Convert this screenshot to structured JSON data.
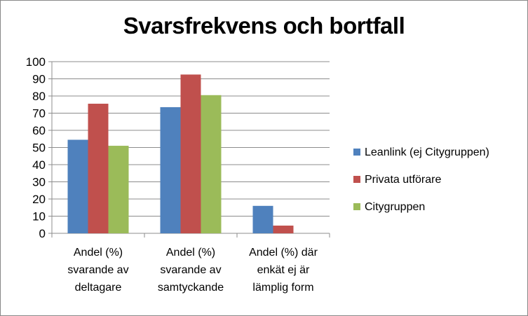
{
  "chart_data": {
    "type": "bar",
    "title": "Svarsfrekvens och bortfall",
    "xlabel": "",
    "ylabel": "",
    "ylim": [
      0,
      100
    ],
    "yticks": [
      "0",
      "10",
      "20",
      "30",
      "40",
      "50",
      "60",
      "70",
      "80",
      "90",
      "100"
    ],
    "categories": [
      [
        "Andel (%)",
        "svarande av",
        "deltagare"
      ],
      [
        "Andel (%)",
        "svarande av",
        "samtyckande"
      ],
      [
        "Andel (%) där",
        "enkät ej är",
        "lämplig form"
      ]
    ],
    "series": [
      {
        "name": "Leanlink (ej Citygruppen)",
        "color": "#4F81BD",
        "values": [
          54.5,
          73.5,
          16
        ]
      },
      {
        "name": "Privata utförare",
        "color": "#C0504D",
        "values": [
          75.5,
          92.5,
          4.5
        ]
      },
      {
        "name": "Citygruppen",
        "color": "#9BBB59",
        "values": [
          51,
          80.5,
          null
        ]
      }
    ],
    "legend_position": "right",
    "grid": true
  }
}
